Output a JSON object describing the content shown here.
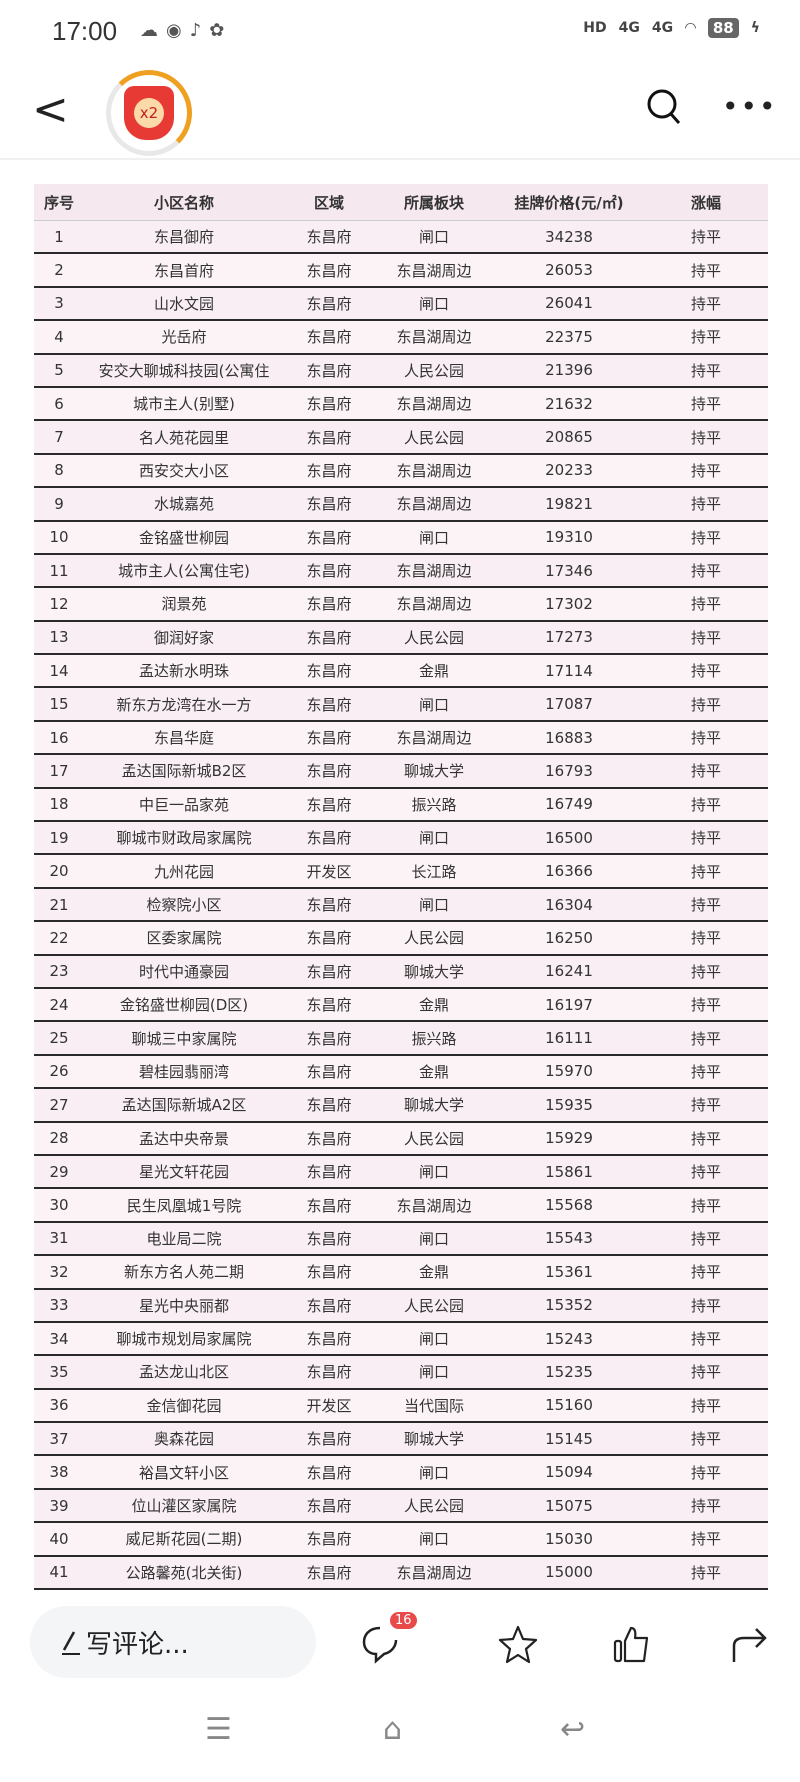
{
  "status_bar": {
    "time": "17:00",
    "battery": "88",
    "signal1": "4G",
    "signal2": "4G",
    "hd": "HD"
  },
  "header": {
    "badge_label": "x2"
  },
  "table": {
    "columns": [
      "序号",
      "小区名称",
      "区域",
      "所属板块",
      "挂牌价格(元/㎡)",
      "涨幅"
    ],
    "rows": [
      [
        "1",
        "东昌御府",
        "东昌府",
        "闸口",
        "34238",
        "持平"
      ],
      [
        "2",
        "东昌首府",
        "东昌府",
        "东昌湖周边",
        "26053",
        "持平"
      ],
      [
        "3",
        "山水文园",
        "东昌府",
        "闸口",
        "26041",
        "持平"
      ],
      [
        "4",
        "光岳府",
        "东昌府",
        "东昌湖周边",
        "22375",
        "持平"
      ],
      [
        "5",
        "安交大聊城科技园(公寓住",
        "东昌府",
        "人民公园",
        "21396",
        "持平"
      ],
      [
        "6",
        "城市主人(别墅)",
        "东昌府",
        "东昌湖周边",
        "21632",
        "持平"
      ],
      [
        "7",
        "名人苑花园里",
        "东昌府",
        "人民公园",
        "20865",
        "持平"
      ],
      [
        "8",
        "西安交大小区",
        "东昌府",
        "东昌湖周边",
        "20233",
        "持平"
      ],
      [
        "9",
        "水城嘉苑",
        "东昌府",
        "东昌湖周边",
        "19821",
        "持平"
      ],
      [
        "10",
        "金铭盛世柳园",
        "东昌府",
        "闸口",
        "19310",
        "持平"
      ],
      [
        "11",
        "城市主人(公寓住宅)",
        "东昌府",
        "东昌湖周边",
        "17346",
        "持平"
      ],
      [
        "12",
        "润景苑",
        "东昌府",
        "东昌湖周边",
        "17302",
        "持平"
      ],
      [
        "13",
        "御润好家",
        "东昌府",
        "人民公园",
        "17273",
        "持平"
      ],
      [
        "14",
        "孟达新水明珠",
        "东昌府",
        "金鼎",
        "17114",
        "持平"
      ],
      [
        "15",
        "新东方龙湾在水一方",
        "东昌府",
        "闸口",
        "17087",
        "持平"
      ],
      [
        "16",
        "东昌华庭",
        "东昌府",
        "东昌湖周边",
        "16883",
        "持平"
      ],
      [
        "17",
        "孟达国际新城B2区",
        "东昌府",
        "聊城大学",
        "16793",
        "持平"
      ],
      [
        "18",
        "中巨一品家苑",
        "东昌府",
        "振兴路",
        "16749",
        "持平"
      ],
      [
        "19",
        "聊城市财政局家属院",
        "东昌府",
        "闸口",
        "16500",
        "持平"
      ],
      [
        "20",
        "九州花园",
        "开发区",
        "长江路",
        "16366",
        "持平"
      ],
      [
        "21",
        "检察院小区",
        "东昌府",
        "闸口",
        "16304",
        "持平"
      ],
      [
        "22",
        "区委家属院",
        "东昌府",
        "人民公园",
        "16250",
        "持平"
      ],
      [
        "23",
        "时代中通豪园",
        "东昌府",
        "聊城大学",
        "16241",
        "持平"
      ],
      [
        "24",
        "金铭盛世柳园(D区)",
        "东昌府",
        "金鼎",
        "16197",
        "持平"
      ],
      [
        "25",
        "聊城三中家属院",
        "东昌府",
        "振兴路",
        "16111",
        "持平"
      ],
      [
        "26",
        "碧桂园翡丽湾",
        "东昌府",
        "金鼎",
        "15970",
        "持平"
      ],
      [
        "27",
        "孟达国际新城A2区",
        "东昌府",
        "聊城大学",
        "15935",
        "持平"
      ],
      [
        "28",
        "孟达中央帝景",
        "东昌府",
        "人民公园",
        "15929",
        "持平"
      ],
      [
        "29",
        "星光文轩花园",
        "东昌府",
        "闸口",
        "15861",
        "持平"
      ],
      [
        "30",
        "民生凤凰城1号院",
        "东昌府",
        "东昌湖周边",
        "15568",
        "持平"
      ],
      [
        "31",
        "电业局二院",
        "东昌府",
        "闸口",
        "15543",
        "持平"
      ],
      [
        "32",
        "新东方名人苑二期",
        "东昌府",
        "金鼎",
        "15361",
        "持平"
      ],
      [
        "33",
        "星光中央丽都",
        "东昌府",
        "人民公园",
        "15352",
        "持平"
      ],
      [
        "34",
        "聊城市规划局家属院",
        "东昌府",
        "闸口",
        "15243",
        "持平"
      ],
      [
        "35",
        "孟达龙山北区",
        "东昌府",
        "闸口",
        "15235",
        "持平"
      ],
      [
        "36",
        "金信御花园",
        "开发区",
        "当代国际",
        "15160",
        "持平"
      ],
      [
        "37",
        "奥森花园",
        "东昌府",
        "聊城大学",
        "15145",
        "持平"
      ],
      [
        "38",
        "裕昌文轩小区",
        "东昌府",
        "闸口",
        "15094",
        "持平"
      ],
      [
        "39",
        "位山灌区家属院",
        "东昌府",
        "人民公园",
        "15075",
        "持平"
      ],
      [
        "40",
        "威尼斯花园(二期)",
        "东昌府",
        "闸口",
        "15030",
        "持平"
      ],
      [
        "41",
        "公路馨苑(北关街)",
        "东昌府",
        "东昌湖周边",
        "15000",
        "持平"
      ]
    ]
  },
  "bottom_bar": {
    "comment_placeholder": "写评论...",
    "comment_count": "16"
  }
}
